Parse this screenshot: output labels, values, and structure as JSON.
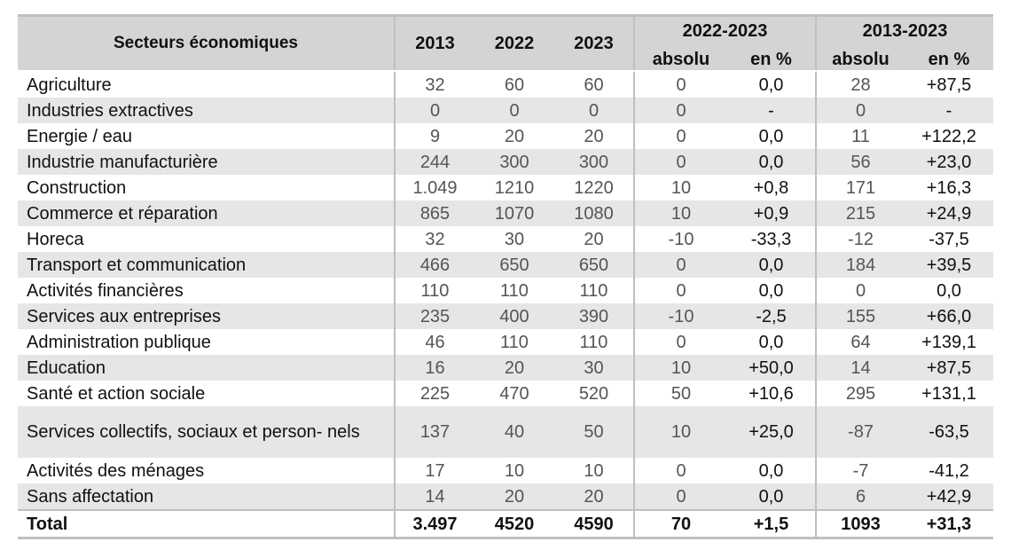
{
  "header": {
    "sector": "Secteurs économiques",
    "y2013": "2013",
    "y2022": "2022",
    "y2023": "2023",
    "period1": "2022-2023",
    "period2": "2013-2023",
    "absolu": "absolu",
    "pct": "en %"
  },
  "rows": [
    {
      "sector": "Agriculture",
      "v2013": "32",
      "v2022": "60",
      "v2023": "60",
      "abs1": "0",
      "pct1": "0,0",
      "abs2": "28",
      "pct2": "+87,5"
    },
    {
      "sector": "Industries extractives",
      "v2013": "0",
      "v2022": "0",
      "v2023": "0",
      "abs1": "0",
      "pct1": "-",
      "abs2": "0",
      "pct2": "-"
    },
    {
      "sector": "Energie / eau",
      "v2013": "9",
      "v2022": "20",
      "v2023": "20",
      "abs1": "0",
      "pct1": "0,0",
      "abs2": "11",
      "pct2": "+122,2"
    },
    {
      "sector": "Industrie manufacturière",
      "v2013": "244",
      "v2022": "300",
      "v2023": "300",
      "abs1": "0",
      "pct1": "0,0",
      "abs2": "56",
      "pct2": "+23,0"
    },
    {
      "sector": "Construction",
      "v2013": "1.049",
      "v2022": "1210",
      "v2023": "1220",
      "abs1": "10",
      "pct1": "+0,8",
      "abs2": "171",
      "pct2": "+16,3"
    },
    {
      "sector": "Commerce et réparation",
      "v2013": "865",
      "v2022": "1070",
      "v2023": "1080",
      "abs1": "10",
      "pct1": "+0,9",
      "abs2": "215",
      "pct2": "+24,9"
    },
    {
      "sector": "Horeca",
      "v2013": "32",
      "v2022": "30",
      "v2023": "20",
      "abs1": "-10",
      "pct1": "-33,3",
      "abs2": "-12",
      "pct2": "-37,5"
    },
    {
      "sector": "Transport et communication",
      "v2013": "466",
      "v2022": "650",
      "v2023": "650",
      "abs1": "0",
      "pct1": "0,0",
      "abs2": "184",
      "pct2": "+39,5"
    },
    {
      "sector": "Activités financières",
      "v2013": "110",
      "v2022": "110",
      "v2023": "110",
      "abs1": "0",
      "pct1": "0,0",
      "abs2": "0",
      "pct2": "0,0"
    },
    {
      "sector": "Services aux entreprises",
      "v2013": "235",
      "v2022": "400",
      "v2023": "390",
      "abs1": "-10",
      "pct1": "-2,5",
      "abs2": "155",
      "pct2": "+66,0"
    },
    {
      "sector": "Administration publique",
      "v2013": "46",
      "v2022": "110",
      "v2023": "110",
      "abs1": "0",
      "pct1": "0,0",
      "abs2": "64",
      "pct2": "+139,1"
    },
    {
      "sector": "Education",
      "v2013": "16",
      "v2022": "20",
      "v2023": "30",
      "abs1": "10",
      "pct1": "+50,0",
      "abs2": "14",
      "pct2": "+87,5"
    },
    {
      "sector": "Santé et action sociale",
      "v2013": "225",
      "v2022": "470",
      "v2023": "520",
      "abs1": "50",
      "pct1": "+10,6",
      "abs2": "295",
      "pct2": "+131,1"
    },
    {
      "sector": "Services collectifs, sociaux et person- nels",
      "v2013": "137",
      "v2022": "40",
      "v2023": "50",
      "abs1": "10",
      "pct1": "+25,0",
      "abs2": "-87",
      "pct2": "-63,5"
    },
    {
      "sector": "Activités des ménages",
      "v2013": "17",
      "v2022": "10",
      "v2023": "10",
      "abs1": "0",
      "pct1": "0,0",
      "abs2": "-7",
      "pct2": "-41,2"
    },
    {
      "sector": "Sans affectation",
      "v2013": "14",
      "v2022": "20",
      "v2023": "20",
      "abs1": "0",
      "pct1": "0,0",
      "abs2": "6",
      "pct2": "+42,9"
    }
  ],
  "total": {
    "sector": "Total",
    "v2013": "3.497",
    "v2022": "4520",
    "v2023": "4590",
    "abs1": "70",
    "pct1": "+1,5",
    "abs2": "1093",
    "pct2": "+31,3"
  }
}
